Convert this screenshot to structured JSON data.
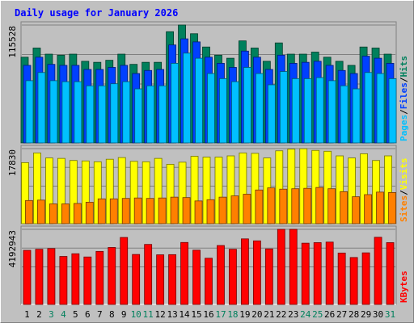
{
  "chart_data": {
    "type": "bar",
    "title": "Daily usage for January 2026",
    "x": [
      "1",
      "2",
      "3",
      "4",
      "5",
      "6",
      "7",
      "8",
      "9",
      "10",
      "11",
      "12",
      "13",
      "14",
      "15",
      "16",
      "17",
      "18",
      "19",
      "20",
      "21",
      "22",
      "23",
      "24",
      "25",
      "26",
      "27",
      "28",
      "29",
      "30",
      "31"
    ],
    "weekend_days": [
      "3",
      "4",
      "10",
      "11",
      "17",
      "18",
      "24",
      "25",
      "31"
    ],
    "panels": [
      {
        "id": "hits",
        "ymax_label": "115528",
        "ymax": 115528,
        "labels": [
          {
            "text": "Pages",
            "color": "#00c0ff"
          },
          {
            "text": "/",
            "color": "#000000"
          },
          {
            "text": "Files",
            "color": "#0040ff"
          },
          {
            "text": "/",
            "color": "#000000"
          },
          {
            "text": "Hits",
            "color": "#00805c"
          }
        ],
        "series": [
          {
            "name": "Hits",
            "color": "#00805c",
            "values": [
              84000,
              93000,
              87000,
              86000,
              87000,
              80000,
              79000,
              81000,
              87000,
              77000,
              79000,
              79000,
              109000,
              115528,
              107000,
              94000,
              86000,
              83000,
              100000,
              93000,
              80000,
              98000,
              87000,
              87000,
              89000,
              84000,
              80000,
              76000,
              94000,
              93000,
              87000
            ]
          },
          {
            "name": "Files",
            "color": "#0040ff",
            "values": [
              76000,
              84000,
              77000,
              76000,
              76000,
              72000,
              72000,
              74000,
              76000,
              68000,
              71000,
              72000,
              96000,
              102000,
              99000,
              84000,
              78000,
              74000,
              90000,
              84000,
              72000,
              86000,
              78000,
              79000,
              80000,
              76000,
              71000,
              68000,
              85000,
              83000,
              78000
            ]
          },
          {
            "name": "Pages",
            "color": "#00c0ff",
            "values": [
              61000,
              69000,
              61000,
              60000,
              60000,
              56000,
              56000,
              58000,
              60000,
              53000,
              56000,
              56000,
              78000,
              88000,
              83000,
              68000,
              63000,
              60000,
              74000,
              68000,
              57000,
              70000,
              63000,
              63000,
              64000,
              61000,
              56000,
              53000,
              69000,
              68000,
              63000
            ]
          }
        ]
      },
      {
        "id": "visits",
        "ymax_label": "17830",
        "ymax": 17830,
        "labels": [
          {
            "text": "Sites",
            "color": "#ff8000"
          },
          {
            "text": "/",
            "color": "#000000"
          },
          {
            "text": "Visits",
            "color": "#ffff00"
          }
        ],
        "series": [
          {
            "name": "Visits",
            "color": "#ffff00",
            "values": [
              14500,
              16800,
              15600,
              15500,
              15000,
              14900,
              14700,
              15300,
              15700,
              14800,
              14700,
              15500,
              14100,
              14600,
              16000,
              15800,
              15800,
              16100,
              16800,
              16700,
              15600,
              17300,
              17700,
              17800,
              17400,
              17200,
              16100,
              15600,
              16600,
              15000,
              16100
            ]
          },
          {
            "name": "Sites",
            "color": "#ff8000",
            "values": [
              5500,
              5600,
              4700,
              4700,
              4800,
              5100,
              5900,
              5900,
              6000,
              6100,
              6000,
              6100,
              6300,
              6200,
              5400,
              5700,
              6300,
              6600,
              7000,
              8000,
              8500,
              8200,
              8300,
              8400,
              8600,
              8300,
              7600,
              6400,
              6900,
              7500,
              7400
            ]
          }
        ]
      },
      {
        "id": "kbytes",
        "ymax_label": "4192943",
        "ymax": 4192943,
        "labels": [
          {
            "text": "KBytes",
            "color": "#ff0000"
          }
        ],
        "series": [
          {
            "name": "KBytes",
            "color": "#ff0000",
            "values": [
              3020000,
              3080000,
              3120000,
              2680000,
              2830000,
              2650000,
              2960000,
              3180000,
              3740000,
              2790000,
              3350000,
              2770000,
              2780000,
              3460000,
              3030000,
              2580000,
              3290000,
              3080000,
              3660000,
              3550000,
              3100000,
              4192943,
              4192943,
              3420000,
              3450000,
              3480000,
              2870000,
              2620000,
              2880000,
              3750000,
              3450000
            ]
          }
        ]
      }
    ],
    "colors": {
      "weekday_label": "#000000",
      "weekend_label": "#00805c",
      "title": "#0000ff"
    }
  }
}
